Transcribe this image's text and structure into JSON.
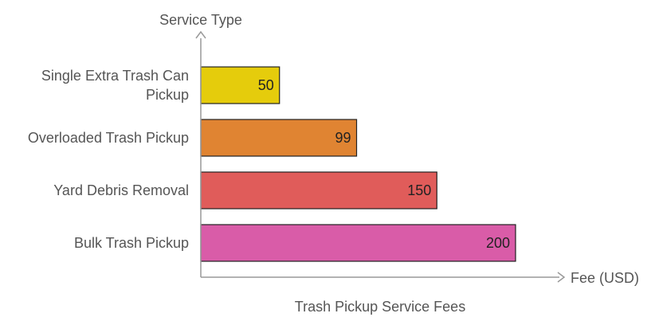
{
  "chart_data": {
    "type": "bar",
    "orientation": "horizontal",
    "title": "Trash Pickup Service Fees",
    "ylabel": "Service Type",
    "xlabel": "Fee (USD)",
    "categories": [
      "Single Extra Trash Can Pickup",
      "Overloaded Trash Pickup",
      "Yard Debris Removal",
      "Bulk Trash Pickup"
    ],
    "values": [
      50,
      99,
      150,
      200
    ],
    "colors": [
      "#e5cc0c",
      "#e08432",
      "#e05c5a",
      "#d95ca8"
    ],
    "xlim": [
      0,
      230
    ],
    "grid": false,
    "data_labels": true
  }
}
